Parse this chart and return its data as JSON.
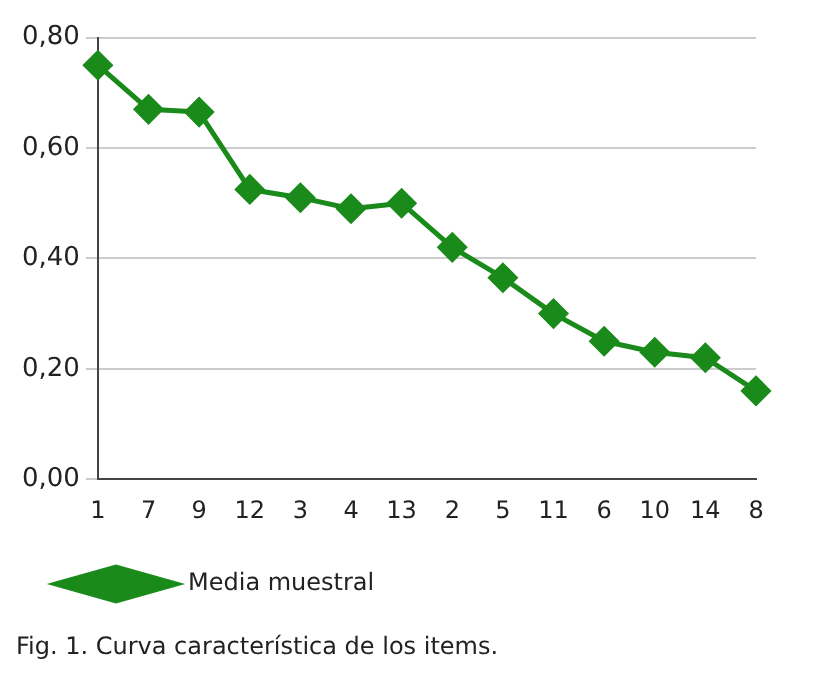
{
  "chart_data": {
    "type": "line",
    "categories": [
      "1",
      "7",
      "9",
      "12",
      "3",
      "4",
      "13",
      "2",
      "5",
      "11",
      "6",
      "10",
      "14",
      "8"
    ],
    "series": [
      {
        "name": "Media muestral",
        "color": "#1a8a1a",
        "values": [
          0.75,
          0.67,
          0.665,
          0.525,
          0.51,
          0.49,
          0.5,
          0.42,
          0.365,
          0.3,
          0.25,
          0.23,
          0.22,
          0.16
        ]
      }
    ],
    "ylim": [
      0,
      0.8
    ],
    "yticks": [
      {
        "value": 0,
        "label": "0,00"
      },
      {
        "value": 0.2,
        "label": "0,20"
      },
      {
        "value": 0.4,
        "label": "0,40"
      },
      {
        "value": 0.6,
        "label": "0,60"
      },
      {
        "value": 0.8,
        "label": "0,80"
      }
    ],
    "grid": "y",
    "legend": "bottom left",
    "marker": "diamond",
    "line_style": "solid",
    "annotations": [
      "Fig. 1. Curva característica de los items."
    ]
  }
}
